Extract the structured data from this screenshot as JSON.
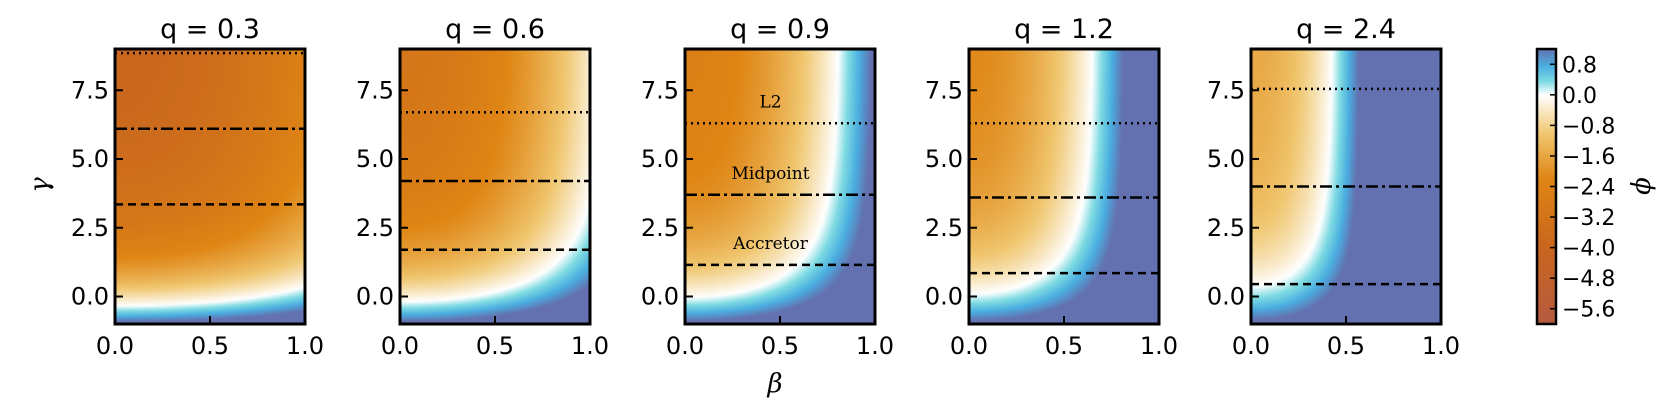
{
  "chart_data": {
    "type": "heatmap",
    "xlabel": "β",
    "ylabel": "γ",
    "xlim": [
      0.0,
      1.0
    ],
    "ylim": [
      -1.0,
      9.0
    ],
    "xticks": [
      "0.0",
      "0.5",
      "1.0"
    ],
    "yticks": [
      "0.0",
      "2.5",
      "5.0",
      "7.5"
    ],
    "panels": [
      {
        "title": "q = 0.3",
        "q": 0.3,
        "l2": 8.85,
        "midpoint": 6.1,
        "accretor": 3.35,
        "labels": []
      },
      {
        "title": "q = 0.6",
        "q": 0.6,
        "l2": 6.7,
        "midpoint": 4.2,
        "accretor": 1.7,
        "labels": []
      },
      {
        "title": "q = 0.9",
        "q": 0.9,
        "l2": 6.3,
        "midpoint": 3.7,
        "accretor": 1.15,
        "labels": [
          {
            "text": "L2",
            "x": 0.45,
            "y": 7.1
          },
          {
            "text": "Midpoint",
            "x": 0.45,
            "y": 4.5
          },
          {
            "text": "Accretor",
            "x": 0.45,
            "y": 1.95
          }
        ]
      },
      {
        "title": "q = 1.2",
        "q": 1.2,
        "l2": 6.3,
        "midpoint": 3.6,
        "accretor": 0.85,
        "labels": []
      },
      {
        "title": "q = 2.4",
        "q": 2.4,
        "l2": 7.55,
        "midpoint": 4.0,
        "accretor": 0.45,
        "labels": []
      }
    ],
    "colorbar": {
      "label": "ϕ",
      "range": [
        -6.0,
        1.2
      ],
      "ticks": [
        "0.8",
        "0.0",
        "−0.8",
        "−1.6",
        "−2.4",
        "−3.2",
        "−4.0",
        "−4.8",
        "−5.6"
      ],
      "tick_values": [
        0.8,
        0.0,
        -0.8,
        -1.6,
        -2.4,
        -3.2,
        -4.0,
        -4.8,
        -5.6
      ],
      "colors": [
        "#b55a40",
        "#c8661e",
        "#df8514",
        "#f0c770",
        "#ffffff",
        "#7edbe2",
        "#4aaee0",
        "#6471b0"
      ],
      "color_stops": [
        -6.0,
        -4.0,
        -2.2,
        -1.0,
        0.0,
        0.35,
        0.75,
        1.2
      ]
    },
    "line_styles": {
      "l2": "dotted",
      "midpoint": "dash-dot",
      "accretor": "dashed"
    }
  }
}
